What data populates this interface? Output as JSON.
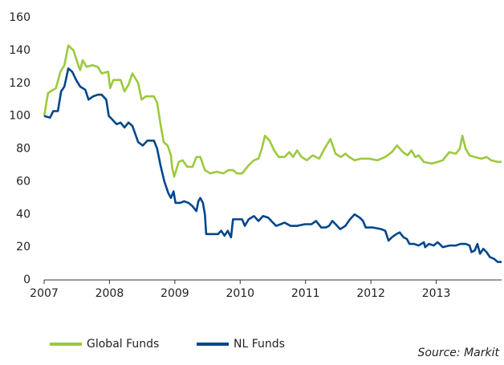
{
  "chart_data": {
    "type": "line",
    "annotation": "Source: Markit",
    "xlim": [
      2007,
      2014
    ],
    "xticks": [
      2007,
      2008,
      2009,
      2010,
      2011,
      2012,
      2013
    ],
    "ylim": [
      0,
      160
    ],
    "yticks": [
      0,
      20,
      40,
      60,
      80,
      100,
      120,
      140,
      160
    ],
    "grid": false,
    "legend": "bottom",
    "series": [
      {
        "name": "Global Funds",
        "color": "#9cc93e",
        "x": [
          2007,
          2007.06,
          2007.18,
          2007.25,
          2007.31,
          2007.37,
          2007.45,
          2007.53,
          2007.55,
          2007.59,
          2007.65,
          2007.74,
          2007.82,
          2007.88,
          2007.98,
          2008.01,
          2008.06,
          2008.17,
          2008.23,
          2008.29,
          2008.35,
          2008.44,
          2008.49,
          2008.56,
          2008.68,
          2008.73,
          2008.78,
          2008.83,
          2008.89,
          2008.94,
          2008.96,
          2008.99,
          2009.06,
          2009.12,
          2009.19,
          2009.27,
          2009.33,
          2009.39,
          2009.46,
          2009.54,
          2009.64,
          2009.74,
          2009.82,
          2009.89,
          2009.95,
          2010.03,
          2010.13,
          2010.21,
          2010.28,
          2010.33,
          2010.38,
          2010.45,
          2010.52,
          2010.59,
          2010.68,
          2010.75,
          2010.81,
          2010.87,
          2010.94,
          2011.02,
          2011.11,
          2011.21,
          2011.29,
          2011.38,
          2011.46,
          2011.54,
          2011.61,
          2011.67,
          2011.75,
          2011.85,
          2011.97,
          2012.1,
          2012.22,
          2012.32,
          2012.4,
          2012.49,
          2012.56,
          2012.62,
          2012.68,
          2012.73,
          2012.81,
          2012.93,
          2013.02,
          2013.1,
          2013.2,
          2013.3,
          2013.36,
          2013.4,
          2013.45,
          2013.51,
          2013.59,
          2013.69,
          2013.77,
          2013.84,
          2013.94,
          2014
        ],
        "values": [
          100,
          114,
          117,
          127,
          131,
          143,
          140,
          130,
          128,
          134,
          130,
          131,
          130,
          126,
          127,
          117,
          122,
          122,
          115,
          119,
          126,
          120,
          110,
          112,
          112,
          108,
          95,
          84,
          82,
          76,
          68,
          63,
          72,
          73,
          69,
          69,
          75,
          75,
          67,
          65,
          66,
          65,
          67,
          67,
          65,
          65,
          70,
          73,
          74,
          80,
          88,
          85,
          79,
          75,
          75,
          78,
          75,
          79,
          75,
          73,
          76,
          74,
          80,
          86,
          77,
          75,
          77,
          75,
          73,
          74,
          74,
          73,
          75,
          78,
          82,
          78,
          76,
          79,
          75,
          76,
          72,
          71,
          72,
          73,
          78,
          77,
          80,
          88,
          80,
          76,
          75,
          74,
          75,
          73,
          72,
          72
        ]
      },
      {
        "name": "NL Funds",
        "color": "#00468b",
        "x": [
          2007,
          2007.09,
          2007.14,
          2007.21,
          2007.26,
          2007.31,
          2007.37,
          2007.43,
          2007.49,
          2007.55,
          2007.63,
          2007.68,
          2007.75,
          2007.82,
          2007.88,
          2007.95,
          2007.99,
          2008.04,
          2008.11,
          2008.17,
          2008.23,
          2008.29,
          2008.35,
          2008.44,
          2008.51,
          2008.58,
          2008.68,
          2008.73,
          2008.78,
          2008.84,
          2008.9,
          2008.94,
          2008.98,
          2009.01,
          2009.08,
          2009.14,
          2009.21,
          2009.27,
          2009.33,
          2009.36,
          2009.39,
          2009.43,
          2009.46,
          2009.48,
          2009.58,
          2009.66,
          2009.71,
          2009.76,
          2009.81,
          2009.86,
          2009.89,
          2010.03,
          2010.07,
          2010.13,
          2010.21,
          2010.28,
          2010.35,
          2010.43,
          2010.5,
          2010.55,
          2010.62,
          2010.68,
          2010.77,
          2010.87,
          2010.99,
          2011.09,
          2011.16,
          2011.24,
          2011.31,
          2011.36,
          2011.41,
          2011.46,
          2011.53,
          2011.61,
          2011.68,
          2011.75,
          2011.83,
          2011.88,
          2011.92,
          2012.03,
          2012.16,
          2012.22,
          2012.27,
          2012.32,
          2012.39,
          2012.44,
          2012.5,
          2012.55,
          2012.59,
          2012.66,
          2012.73,
          2012.81,
          2012.83,
          2012.89,
          2012.96,
          2013.02,
          2013.05,
          2013.1,
          2013.2,
          2013.3,
          2013.37,
          2013.45,
          2013.51,
          2013.54,
          2013.59,
          2013.63,
          2013.67,
          2013.72,
          2013.77,
          2013.82,
          2013.88,
          2013.94,
          2014
        ],
        "values": [
          100,
          99,
          103,
          103,
          115,
          118,
          129,
          127,
          122,
          118,
          116,
          110,
          112,
          113,
          113,
          110,
          100,
          98,
          95,
          96,
          93,
          96,
          94,
          84,
          82,
          85,
          85,
          80,
          70,
          60,
          53,
          50,
          54,
          47,
          47,
          48,
          47,
          45,
          42,
          48,
          50,
          47,
          40,
          28,
          28,
          28,
          30,
          27,
          30,
          26,
          37,
          37,
          33,
          37,
          39,
          36,
          39,
          38,
          35,
          33,
          34,
          35,
          33,
          33,
          34,
          34,
          36,
          32,
          32,
          33,
          36,
          34,
          31,
          33,
          37,
          40,
          38,
          36,
          32,
          32,
          31,
          30,
          24,
          26,
          28,
          29,
          26,
          25,
          22,
          22,
          21,
          23,
          20,
          22,
          21,
          23,
          22,
          20,
          21,
          21,
          22,
          22,
          21,
          17,
          18,
          22,
          16,
          19,
          17,
          14,
          13,
          11,
          11
        ]
      }
    ]
  }
}
